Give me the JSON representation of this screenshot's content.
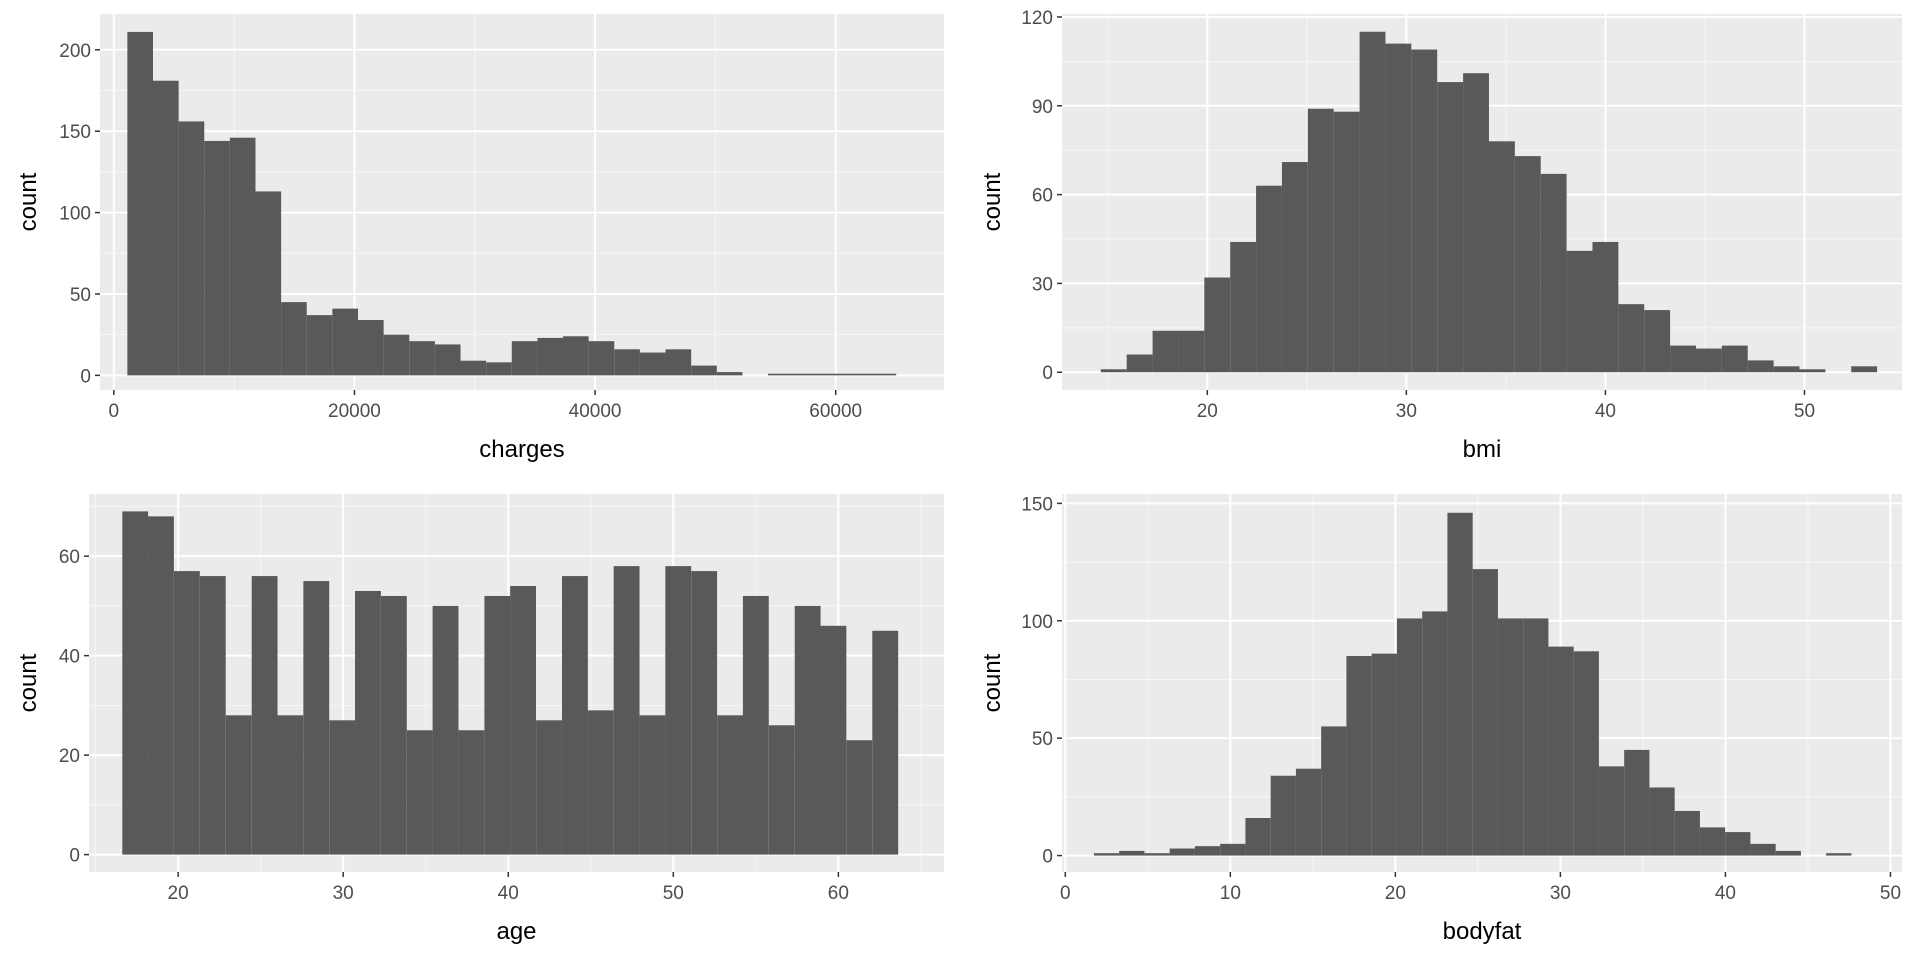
{
  "chart_data": [
    {
      "type": "bar",
      "histogram": true,
      "xlabel": "charges",
      "ylabel": "count",
      "xlim": [
        -1150,
        69000
      ],
      "ylim": [
        -9,
        222
      ],
      "xticks": [
        0,
        20000,
        40000,
        60000
      ],
      "xtick_labels": [
        "0",
        "20000",
        "40000",
        "60000"
      ],
      "yticks": [
        0,
        50,
        100,
        150,
        200
      ],
      "ytick_labels": [
        "0",
        "50",
        "100",
        "150",
        "200"
      ],
      "grid": true,
      "bin_width": 2130,
      "x": [
        2190,
        4320,
        6450,
        8580,
        10710,
        12840,
        14970,
        17100,
        19230,
        21360,
        23490,
        25620,
        27750,
        29880,
        32010,
        34140,
        36270,
        38400,
        40530,
        42660,
        44790,
        46920,
        49050,
        51180,
        53310,
        55440,
        57570,
        59700,
        61830,
        63960
      ],
      "values": [
        211,
        181,
        156,
        144,
        146,
        113,
        45,
        37,
        41,
        34,
        25,
        21,
        19,
        9,
        8,
        21,
        23,
        24,
        21,
        16,
        14,
        16,
        6,
        2,
        0,
        1,
        1,
        1,
        1,
        1
      ],
      "bar_color": "#595959",
      "panel_color": "#ebebeb"
    },
    {
      "type": "bar",
      "histogram": true,
      "xlabel": "bmi",
      "ylabel": "count",
      "xlim": [
        12.7,
        54.9
      ],
      "ylim": [
        -6,
        121
      ],
      "xticks": [
        20,
        30,
        40,
        50
      ],
      "xtick_labels": [
        "20",
        "30",
        "40",
        "50"
      ],
      "yticks": [
        0,
        30,
        60,
        90,
        120
      ],
      "ytick_labels": [
        "0",
        "30",
        "60",
        "90",
        "120"
      ],
      "grid": true,
      "bin_width": 1.3,
      "x": [
        15.3,
        16.6,
        17.9,
        19.2,
        20.5,
        21.8,
        23.1,
        24.4,
        25.7,
        27.0,
        28.3,
        29.6,
        30.9,
        32.2,
        33.5,
        34.8,
        36.1,
        37.4,
        38.7,
        40.0,
        41.3,
        42.6,
        43.9,
        45.2,
        46.5,
        47.8,
        49.1,
        50.4,
        51.7,
        53.0
      ],
      "values": [
        1,
        6,
        14,
        14,
        32,
        44,
        63,
        71,
        89,
        88,
        115,
        111,
        109,
        98,
        101,
        78,
        73,
        67,
        41,
        44,
        23,
        21,
        9,
        8,
        9,
        4,
        2,
        1,
        0,
        2
      ],
      "bar_color": "#595959",
      "panel_color": "#ebebeb"
    },
    {
      "type": "bar",
      "histogram": true,
      "xlabel": "age",
      "ylabel": "count",
      "xlim": [
        14.6,
        66.4
      ],
      "ylim": [
        -3.5,
        72.5
      ],
      "xticks": [
        20,
        30,
        40,
        50,
        60
      ],
      "xtick_labels": [
        "20",
        "30",
        "40",
        "50",
        "60"
      ],
      "yticks": [
        0,
        20,
        40,
        60
      ],
      "ytick_labels": [
        "0",
        "20",
        "40",
        "60"
      ],
      "grid": true,
      "bin_width": 1.566,
      "x": [
        17.4,
        18.96,
        20.53,
        22.1,
        23.67,
        25.24,
        26.8,
        28.37,
        29.94,
        31.5,
        33.07,
        34.64,
        36.2,
        37.77,
        39.34,
        40.9,
        42.47,
        44.04,
        45.6,
        47.17,
        48.74,
        50.3,
        51.87,
        53.44,
        55.0,
        56.57,
        58.14,
        59.7,
        61.27,
        62.84
      ],
      "values": [
        69,
        68,
        57,
        56,
        28,
        56,
        28,
        55,
        27,
        53,
        52,
        25,
        50,
        25,
        52,
        54,
        27,
        56,
        29,
        58,
        28,
        58,
        57,
        28,
        52,
        26,
        50,
        46,
        23,
        45
      ],
      "bar_color": "#595959",
      "panel_color": "#ebebeb"
    },
    {
      "type": "bar",
      "histogram": true,
      "xlabel": "bodyfat",
      "ylabel": "count",
      "xlim": [
        -0.2,
        50.7
      ],
      "ylim": [
        -7,
        154
      ],
      "xticks": [
        0,
        10,
        20,
        30,
        40,
        50
      ],
      "xtick_labels": [
        "0",
        "10",
        "20",
        "30",
        "40",
        "50"
      ],
      "yticks": [
        0,
        50,
        100,
        150
      ],
      "ytick_labels": [
        "0",
        "50",
        "100",
        "150"
      ],
      "grid": true,
      "bin_width": 1.53,
      "x": [
        2.5,
        4.03,
        5.56,
        7.09,
        8.62,
        10.15,
        11.68,
        13.21,
        14.74,
        16.27,
        17.8,
        19.33,
        20.86,
        22.39,
        23.92,
        25.45,
        26.98,
        28.51,
        30.04,
        31.57,
        33.1,
        34.63,
        36.16,
        37.69,
        39.22,
        40.75,
        42.28,
        43.81,
        45.34,
        46.87
      ],
      "values": [
        1,
        2,
        1,
        3,
        4,
        5,
        16,
        34,
        37,
        55,
        85,
        86,
        101,
        104,
        146,
        122,
        101,
        101,
        89,
        87,
        38,
        45,
        29,
        19,
        12,
        10,
        5,
        2,
        0,
        1
      ],
      "bar_color": "#595959",
      "panel_color": "#ebebeb"
    }
  ]
}
